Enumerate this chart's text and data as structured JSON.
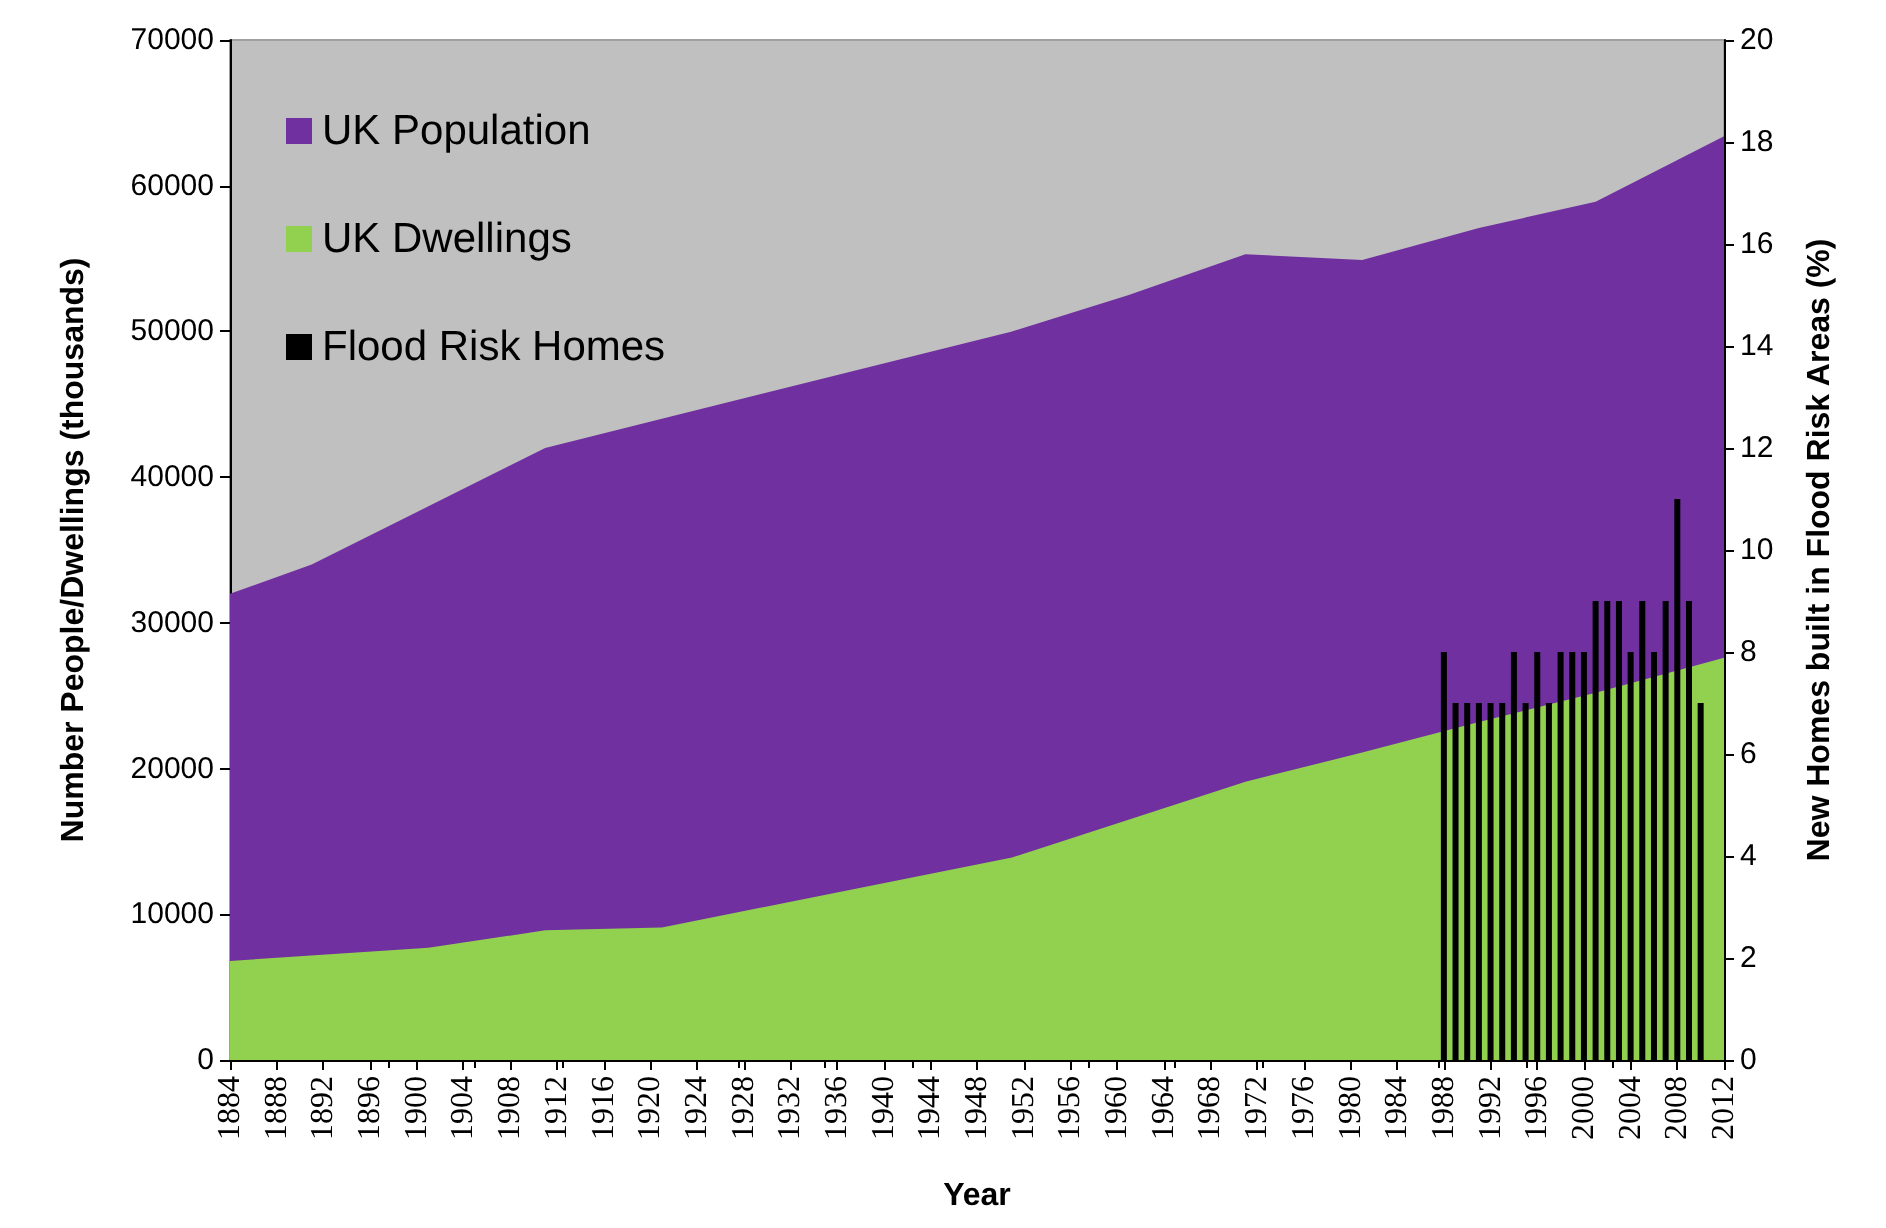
{
  "chart_data": {
    "type": "area",
    "xlabel": "Year",
    "ylabel": "Number People/Dwellings (thousands)",
    "y2label": "New Homes built in Flood Risk Areas (%)",
    "xlim": [
      1884,
      2012
    ],
    "xticks": [
      1884,
      1888,
      1892,
      1896,
      1900,
      1904,
      1908,
      1912,
      1916,
      1920,
      1924,
      1928,
      1932,
      1936,
      1940,
      1944,
      1948,
      1952,
      1956,
      1960,
      1964,
      1968,
      1972,
      1976,
      1980,
      1984,
      1988,
      1992,
      1996,
      2000,
      2004,
      2008,
      2012
    ],
    "ylim": [
      0,
      70000
    ],
    "yticks": [
      0,
      10000,
      20000,
      30000,
      40000,
      50000,
      60000,
      70000
    ],
    "y2lim": [
      0,
      20
    ],
    "y2ticks": [
      0,
      2,
      4,
      6,
      8,
      10,
      12,
      14,
      16,
      18,
      20
    ],
    "grid": false,
    "legend": "top left",
    "series": [
      {
        "name": "UK Population",
        "color": "#7030a0",
        "x": [
          1884,
          1891,
          1901,
          1911,
          1921,
          1951,
          1961,
          1971,
          1981,
          1991,
          2001,
          2012
        ],
        "values": [
          32000,
          34000,
          38000,
          42000,
          44000,
          50000,
          52500,
          55300,
          54900,
          57100,
          58900,
          63400
        ]
      },
      {
        "name": "UK Dwellings",
        "color": "#92d050",
        "x": [
          1884,
          1901,
          1911,
          1921,
          1951,
          1971,
          1981,
          1991,
          2001,
          2012
        ],
        "values": [
          6800,
          7700,
          8900,
          9100,
          13900,
          19100,
          21100,
          23200,
          25200,
          27600
        ]
      },
      {
        "name": "Flood Risk Homes",
        "type": "bar",
        "axis": "y2",
        "color": "#000000",
        "x": [
          1988,
          1989,
          1990,
          1991,
          1992,
          1993,
          1994,
          1995,
          1996,
          1997,
          1998,
          1999,
          2000,
          2001,
          2002,
          2003,
          2004,
          2005,
          2006,
          2007,
          2008,
          2009,
          2010
        ],
        "values": [
          8,
          7,
          7,
          7,
          7,
          7,
          8,
          7,
          8,
          7,
          8,
          8,
          8,
          9,
          9,
          9,
          8,
          9,
          8,
          9,
          11,
          9,
          7
        ]
      }
    ]
  }
}
